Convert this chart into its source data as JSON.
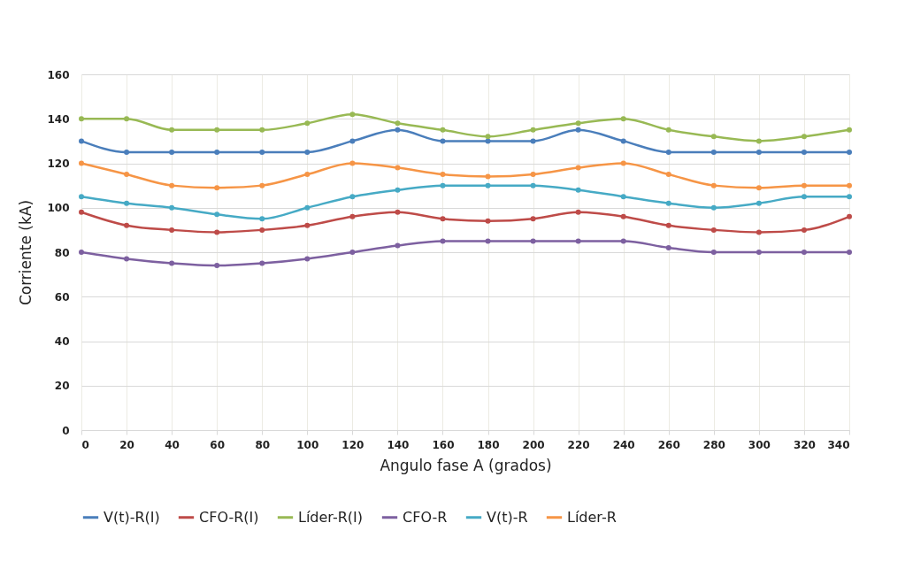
{
  "chart_data": {
    "type": "line",
    "xlabel": "Angulo fase A (grados)",
    "ylabel": "Corriente (kA)",
    "x": [
      0,
      20,
      40,
      60,
      80,
      100,
      120,
      140,
      160,
      180,
      200,
      220,
      240,
      260,
      280,
      300,
      320,
      340
    ],
    "xlim": [
      0,
      340
    ],
    "xticks": [
      0,
      20,
      40,
      60,
      80,
      100,
      120,
      140,
      160,
      180,
      200,
      220,
      240,
      260,
      280,
      300,
      320,
      340
    ],
    "ylim": [
      0,
      160
    ],
    "yticks": [
      0,
      20,
      40,
      60,
      80,
      100,
      120,
      140,
      160
    ],
    "grid": true,
    "legend": "bottom",
    "marker": "circle",
    "line_style": "solid",
    "series": [
      {
        "name": "V(t)-R(I)",
        "color": "#4a7ebb",
        "values": [
          130,
          125,
          125,
          125,
          125,
          125,
          130,
          135,
          130,
          130,
          130,
          135,
          130,
          125,
          125,
          125,
          125,
          125
        ]
      },
      {
        "name": "CFO-R(I)",
        "color": "#be4b48",
        "values": [
          98,
          92,
          90,
          89,
          90,
          92,
          96,
          98,
          95,
          94,
          95,
          98,
          96,
          92,
          90,
          89,
          90,
          96
        ]
      },
      {
        "name": "Líder-R(I)",
        "color": "#98b954",
        "values": [
          140,
          140,
          135,
          135,
          135,
          138,
          142,
          138,
          135,
          132,
          135,
          138,
          140,
          135,
          132,
          130,
          132,
          135
        ]
      },
      {
        "name": "CFO-R",
        "color": "#7d60a0",
        "values": [
          80,
          77,
          75,
          74,
          75,
          77,
          80,
          83,
          85,
          85,
          85,
          85,
          85,
          82,
          80,
          80,
          80,
          80
        ]
      },
      {
        "name": "V(t)-R",
        "color": "#46aac5",
        "values": [
          105,
          102,
          100,
          97,
          95,
          100,
          105,
          108,
          110,
          110,
          110,
          108,
          105,
          102,
          100,
          102,
          105,
          105
        ]
      },
      {
        "name": "Líder-R",
        "color": "#f69546",
        "values": [
          120,
          115,
          110,
          109,
          110,
          115,
          120,
          118,
          115,
          114,
          115,
          118,
          120,
          115,
          110,
          109,
          110,
          110
        ]
      }
    ]
  }
}
